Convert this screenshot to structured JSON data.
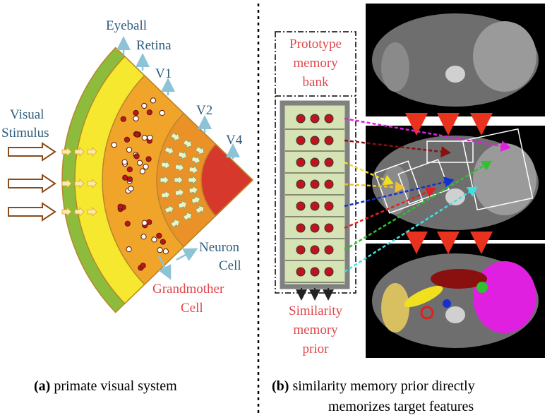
{
  "panel_a": {
    "labels": {
      "eyeball": "Eyeball",
      "retina": "Retina",
      "v1": "V1",
      "v2": "V2",
      "v4": "V4",
      "visual_stimulus": [
        "Visual",
        "Stimulus"
      ],
      "neuron_cell": [
        "Neuron",
        "Cell"
      ],
      "grandmother_cell": [
        "Grandmother",
        "Cell"
      ]
    },
    "caption": {
      "tag": "(a)",
      "text": "primate visual system"
    }
  },
  "panel_b": {
    "prototype_memory_bank": [
      "Prototype",
      "memory",
      "bank"
    ],
    "similarity_memory_prior": [
      "Similarity",
      "memory",
      "prior"
    ],
    "caption": {
      "tag": "(b)",
      "lines": [
        "similarity memory prior directly",
        "memorizes target features"
      ]
    }
  }
}
